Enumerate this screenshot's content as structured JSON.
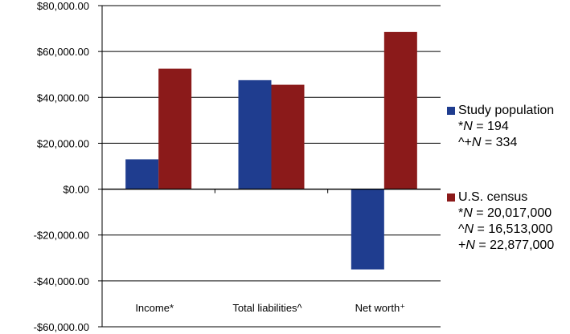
{
  "chart_data": {
    "type": "bar",
    "categories": [
      "Income*",
      "Total liabilities^",
      "Net worth⁺"
    ],
    "series": [
      {
        "name": "Study population",
        "color": "#1f3d8f",
        "values": [
          13000,
          47500,
          -35000
        ]
      },
      {
        "name": "U.S. census",
        "color": "#8b1a1a",
        "values": [
          52500,
          45500,
          68500
        ]
      }
    ],
    "ylim": [
      -60000,
      80000
    ],
    "ytick_values": [
      80000,
      60000,
      40000,
      20000,
      0,
      -20000,
      -40000,
      -60000
    ],
    "yticks": [
      "$80,000.00",
      "$60,000.00",
      "$40,000.00",
      "$20,000.00",
      "$0.00",
      "-$20,000.00",
      "-$40,000.00",
      "-$60,000.00"
    ],
    "grid": true,
    "title": "",
    "xlabel": "",
    "ylabel": "",
    "legend": [
      {
        "name": "Study population",
        "notes": [
          {
            "prefix": "*",
            "var": "N",
            "suffix": " = 194"
          },
          {
            "prefix": "^+",
            "var": "N",
            "suffix": " = 334"
          }
        ]
      },
      {
        "name": "U.S. census",
        "notes": [
          {
            "prefix": "*",
            "var": "N",
            "suffix": " = 20,017,000"
          },
          {
            "prefix": "^",
            "var": "N",
            "suffix": " = 16,513,000"
          },
          {
            "prefix": "+",
            "var": "N",
            "suffix": " = 22,877,000"
          }
        ]
      }
    ]
  }
}
